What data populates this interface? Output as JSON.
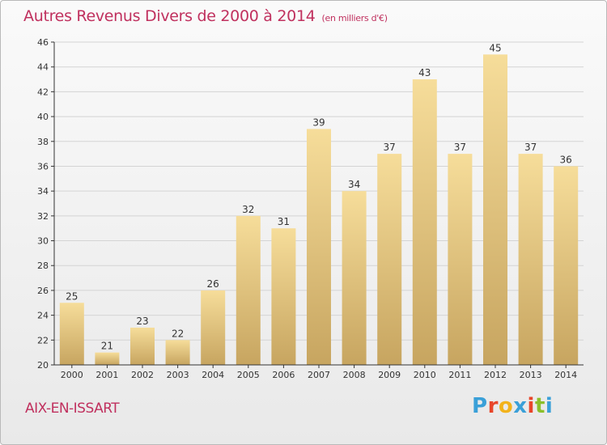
{
  "header": {
    "title": "Autres Revenus Divers de 2000 à 2014",
    "subtitle": "(en milliers d'€)"
  },
  "footer": {
    "city": "AIX-EN-ISSART",
    "logo_text": "Proxiti",
    "logo_colors": [
      "#3aa0d8",
      "#e8462a",
      "#f2b31c",
      "#3aa0d8",
      "#e8462a",
      "#8bbf2a",
      "#3aa0d8"
    ]
  },
  "colors": {
    "title": "#c0305e",
    "bar_top": "#f6dd9a",
    "bar_bottom": "#c7a560",
    "axis": "#333333",
    "grid": "#d4d4d4"
  },
  "chart_data": {
    "type": "bar",
    "title": "Autres Revenus Divers de 2000 à 2014",
    "subtitle": "(en milliers d'€)",
    "categories": [
      "2000",
      "2001",
      "2002",
      "2003",
      "2004",
      "2005",
      "2006",
      "2007",
      "2008",
      "2009",
      "2010",
      "2011",
      "2012",
      "2013",
      "2014"
    ],
    "values": [
      25,
      21,
      23,
      22,
      26,
      32,
      31,
      39,
      34,
      37,
      43,
      37,
      45,
      37,
      36
    ],
    "ylim": [
      20,
      46
    ],
    "yticks": [
      20,
      22,
      24,
      26,
      28,
      30,
      32,
      34,
      36,
      38,
      40,
      42,
      44,
      46
    ],
    "grid": true,
    "data_labels": true
  }
}
